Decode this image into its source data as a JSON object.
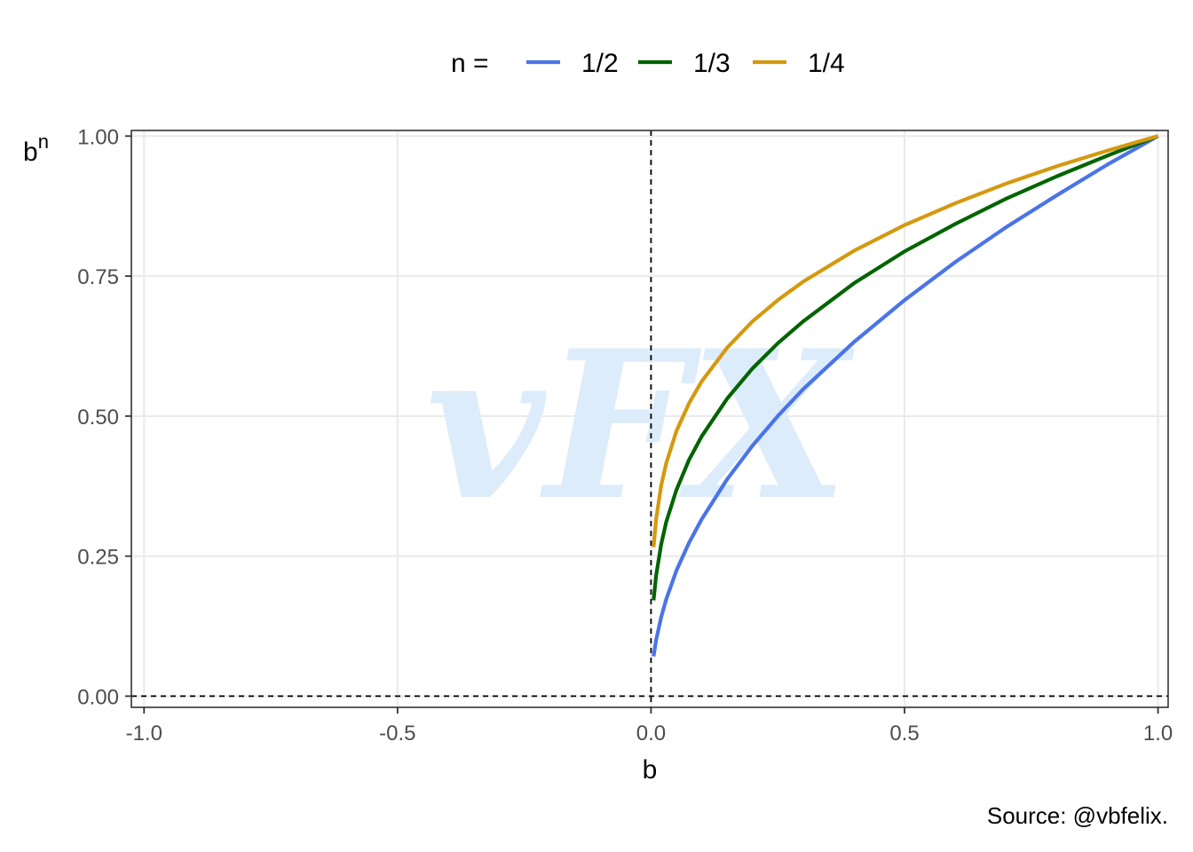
{
  "chart_data": {
    "type": "line",
    "title": "",
    "xlabel": "b",
    "ylabel_base": "b",
    "ylabel_exponent": "n",
    "xlim": [
      -1.0,
      1.0
    ],
    "ylim": [
      0.0,
      1.0
    ],
    "x_ticks": [
      -1.0,
      -0.5,
      0.0,
      0.5,
      1.0
    ],
    "x_tick_labels": [
      "-1.0",
      "-0.5",
      "0.0",
      "0.5",
      "1.0"
    ],
    "y_ticks": [
      0.0,
      0.25,
      0.5,
      0.75,
      1.0
    ],
    "y_tick_labels": [
      "0.00",
      "0.25",
      "0.50",
      "0.75",
      "1.00"
    ],
    "grid": true,
    "legend": {
      "position": "top",
      "title": "n =",
      "entries": [
        "1/2",
        "1/3",
        "1/4"
      ]
    },
    "reference_lines": [
      {
        "orientation": "vertical",
        "value": 0.0,
        "style": "dashed"
      },
      {
        "orientation": "horizontal",
        "value": 0.0,
        "style": "dashed"
      }
    ],
    "series": [
      {
        "name": "1/2",
        "exponent": 0.5,
        "color": "#4a74e8",
        "x": [
          0.005,
          0.01,
          0.02,
          0.03,
          0.05,
          0.075,
          0.1,
          0.15,
          0.2,
          0.25,
          0.3,
          0.4,
          0.5,
          0.6,
          0.7,
          0.8,
          0.9,
          1.0
        ],
        "y": [
          0.071,
          0.1,
          0.141,
          0.173,
          0.224,
          0.274,
          0.316,
          0.387,
          0.447,
          0.5,
          0.548,
          0.632,
          0.707,
          0.775,
          0.837,
          0.894,
          0.949,
          1.0
        ]
      },
      {
        "name": "1/3",
        "exponent": 0.3333,
        "color": "#006400",
        "x": [
          0.005,
          0.01,
          0.02,
          0.03,
          0.05,
          0.075,
          0.1,
          0.15,
          0.2,
          0.25,
          0.3,
          0.4,
          0.5,
          0.6,
          0.7,
          0.8,
          0.9,
          1.0
        ],
        "y": [
          0.171,
          0.215,
          0.271,
          0.311,
          0.368,
          0.422,
          0.464,
          0.531,
          0.585,
          0.63,
          0.669,
          0.737,
          0.794,
          0.843,
          0.888,
          0.928,
          0.965,
          1.0
        ]
      },
      {
        "name": "1/4",
        "exponent": 0.25,
        "color": "#d4990f",
        "x": [
          0.005,
          0.01,
          0.02,
          0.03,
          0.05,
          0.075,
          0.1,
          0.15,
          0.2,
          0.25,
          0.3,
          0.4,
          0.5,
          0.6,
          0.7,
          0.8,
          0.9,
          1.0
        ],
        "y": [
          0.266,
          0.316,
          0.376,
          0.416,
          0.473,
          0.523,
          0.562,
          0.622,
          0.669,
          0.707,
          0.74,
          0.795,
          0.841,
          0.88,
          0.915,
          0.946,
          0.974,
          1.0
        ]
      }
    ],
    "caption": "Source: @vbfelix.",
    "watermark": "vFX"
  }
}
